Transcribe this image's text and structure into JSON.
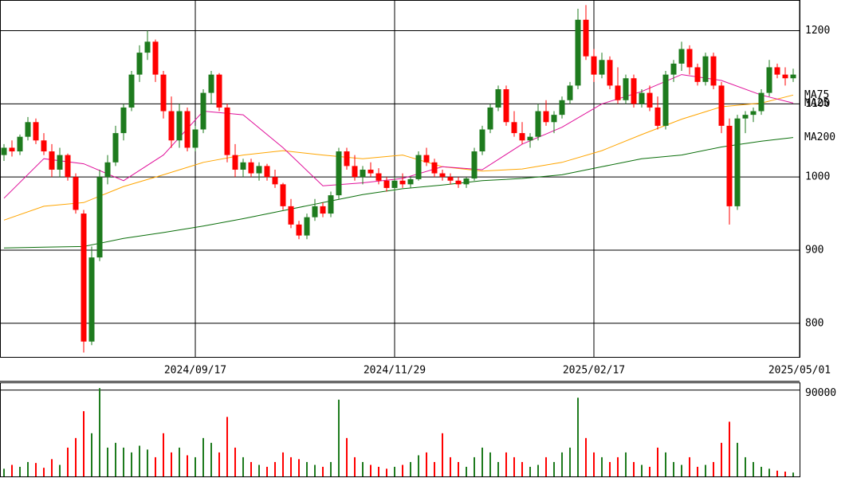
{
  "chart_data": [
    {
      "type": "candlestick",
      "up_color": "#1e7b1e",
      "down_color": "#ff0000",
      "grid": true,
      "x": [
        0,
        1,
        2,
        3,
        4,
        5,
        6,
        7,
        8,
        9,
        10,
        11,
        12,
        13,
        14,
        15,
        16,
        17,
        18,
        19,
        20,
        21,
        22,
        23,
        24,
        25,
        26,
        27,
        28,
        29,
        30,
        31,
        32,
        33,
        34,
        35,
        36,
        37,
        38,
        39,
        40,
        41,
        42,
        43,
        44,
        45,
        46,
        47,
        48,
        49,
        50,
        51,
        52,
        53,
        54,
        55,
        56,
        57,
        58,
        59,
        60,
        61,
        62,
        63,
        64,
        65,
        66,
        67,
        68,
        69,
        70,
        71,
        72,
        73,
        74,
        75,
        76,
        77,
        78,
        79,
        80,
        81,
        82,
        83,
        84,
        85,
        86,
        87,
        88,
        89,
        90,
        91,
        92,
        93,
        94,
        95,
        96,
        97,
        98,
        99
      ],
      "open": [
        1030,
        1040,
        1035,
        1055,
        1075,
        1050,
        1035,
        1010,
        1030,
        1000,
        950,
        775,
        890,
        1000,
        1020,
        1060,
        1095,
        1140,
        1170,
        1185,
        1140,
        1090,
        1050,
        1090,
        1040,
        1065,
        1115,
        1140,
        1095,
        1030,
        1010,
        1020,
        1005,
        1015,
        1000,
        990,
        960,
        935,
        920,
        945,
        960,
        950,
        975,
        1035,
        1015,
        1000,
        1010,
        1005,
        995,
        985,
        995,
        990,
        997,
        1030,
        1020,
        1005,
        1000,
        995,
        990,
        998,
        1035,
        1065,
        1095,
        1120,
        1075,
        1060,
        1050,
        1055,
        1090,
        1075,
        1085,
        1105,
        1125,
        1215,
        1165,
        1140,
        1160,
        1125,
        1105,
        1135,
        1100,
        1115,
        1095,
        1070,
        1140,
        1155,
        1175,
        1150,
        1130,
        1165,
        1125,
        1070,
        960,
        1080,
        1085,
        1090,
        1115,
        1150,
        1140,
        1135
      ],
      "high": [
        1045,
        1050,
        1058,
        1082,
        1080,
        1060,
        1045,
        1040,
        1032,
        1005,
        955,
        905,
        1010,
        1030,
        1070,
        1100,
        1145,
        1180,
        1200,
        1188,
        1145,
        1110,
        1100,
        1095,
        1070,
        1120,
        1145,
        1142,
        1100,
        1045,
        1025,
        1025,
        1020,
        1018,
        1010,
        992,
        970,
        940,
        950,
        970,
        965,
        980,
        1040,
        1040,
        1030,
        1015,
        1020,
        1012,
        1000,
        1000,
        1005,
        1000,
        1035,
        1040,
        1025,
        1010,
        1005,
        1000,
        1000,
        1040,
        1070,
        1100,
        1125,
        1125,
        1090,
        1075,
        1060,
        1100,
        1105,
        1090,
        1110,
        1130,
        1230,
        1235,
        1175,
        1170,
        1165,
        1150,
        1140,
        1140,
        1120,
        1125,
        1110,
        1145,
        1160,
        1185,
        1180,
        1155,
        1170,
        1170,
        1130,
        1080,
        1085,
        1090,
        1095,
        1120,
        1160,
        1155,
        1150,
        1148
      ],
      "low": [
        1022,
        1028,
        1030,
        1050,
        1045,
        1030,
        1000,
        1000,
        995,
        950,
        760,
        770,
        885,
        990,
        1015,
        1050,
        1090,
        1130,
        1160,
        1130,
        1080,
        1040,
        1040,
        1035,
        1035,
        1060,
        1100,
        1090,
        1020,
        1000,
        1000,
        1000,
        995,
        995,
        985,
        955,
        930,
        915,
        915,
        940,
        945,
        945,
        970,
        1010,
        995,
        990,
        1000,
        990,
        980,
        980,
        985,
        985,
        995,
        1015,
        1000,
        995,
        990,
        985,
        985,
        995,
        1030,
        1060,
        1090,
        1070,
        1055,
        1045,
        1040,
        1050,
        1070,
        1060,
        1080,
        1100,
        1120,
        1160,
        1130,
        1135,
        1120,
        1100,
        1100,
        1095,
        1095,
        1090,
        1065,
        1065,
        1130,
        1145,
        1140,
        1125,
        1125,
        1120,
        1060,
        935,
        955,
        1060,
        1075,
        1085,
        1110,
        1135,
        1125,
        1130
      ],
      "close": [
        1040,
        1035,
        1055,
        1075,
        1050,
        1035,
        1010,
        1030,
        1000,
        955,
        775,
        890,
        1000,
        1020,
        1060,
        1095,
        1140,
        1170,
        1185,
        1140,
        1090,
        1050,
        1090,
        1040,
        1065,
        1115,
        1140,
        1095,
        1030,
        1010,
        1020,
        1005,
        1015,
        1000,
        990,
        960,
        935,
        920,
        945,
        960,
        950,
        975,
        1035,
        1015,
        1000,
        1010,
        1005,
        995,
        985,
        995,
        990,
        997,
        1030,
        1020,
        1005,
        1000,
        995,
        990,
        998,
        1035,
        1065,
        1095,
        1120,
        1075,
        1060,
        1050,
        1055,
        1090,
        1075,
        1085,
        1105,
        1125,
        1215,
        1165,
        1140,
        1160,
        1125,
        1105,
        1135,
        1100,
        1115,
        1095,
        1070,
        1140,
        1155,
        1175,
        1150,
        1130,
        1165,
        1125,
        1070,
        960,
        1080,
        1085,
        1090,
        1115,
        1150,
        1140,
        1135,
        1140
      ],
      "series": [
        {
          "name": "MA75",
          "color": "#ffa500",
          "x": [
            0,
            5,
            10,
            15,
            20,
            25,
            30,
            35,
            40,
            45,
            50,
            55,
            60,
            65,
            70,
            75,
            80,
            85,
            90,
            95,
            99
          ],
          "values": [
            941,
            960,
            965,
            987,
            1003,
            1020,
            1030,
            1036,
            1030,
            1025,
            1030,
            1014,
            1008,
            1011,
            1020,
            1036,
            1058,
            1079,
            1096,
            1101,
            1112
          ]
        },
        {
          "name": "MA25",
          "color": "#e0109a",
          "x": [
            0,
            5,
            10,
            15,
            20,
            25,
            30,
            35,
            40,
            45,
            50,
            55,
            60,
            65,
            70,
            75,
            80,
            85,
            90,
            95,
            99
          ],
          "values": [
            971,
            1025,
            1018,
            995,
            1030,
            1090,
            1085,
            1040,
            988,
            992,
            998,
            1014,
            1010,
            1045,
            1068,
            1100,
            1117,
            1140,
            1132,
            1112,
            1101
          ]
        },
        {
          "name": "MA200",
          "color": "#0a6e0a",
          "x": [
            0,
            5,
            10,
            15,
            20,
            25,
            30,
            35,
            40,
            45,
            50,
            55,
            60,
            65,
            70,
            75,
            80,
            85,
            90,
            95,
            99
          ],
          "values": [
            903,
            904,
            905,
            916,
            924,
            933,
            943,
            954,
            965,
            976,
            984,
            989,
            995,
            998,
            1003,
            1014,
            1025,
            1030,
            1041,
            1049,
            1054
          ]
        }
      ],
      "xlim": [
        -0.5,
        99.8
      ],
      "xticks": [
        {
          "value": 24,
          "label": "2024/09/17"
        },
        {
          "value": 49,
          "label": "2024/11/29"
        },
        {
          "value": 74,
          "label": "2025/02/17"
        },
        {
          "value": 99.8,
          "label": "2025/05/01"
        }
      ],
      "ylim": [
        754,
        1242
      ],
      "yticks": [
        800,
        900,
        1000,
        1100,
        1200
      ]
    },
    {
      "type": "bar",
      "x": [
        0,
        1,
        2,
        3,
        4,
        5,
        6,
        7,
        8,
        9,
        10,
        11,
        12,
        13,
        14,
        15,
        16,
        17,
        18,
        19,
        20,
        21,
        22,
        23,
        24,
        25,
        26,
        27,
        28,
        29,
        30,
        31,
        32,
        33,
        34,
        35,
        36,
        37,
        38,
        39,
        40,
        41,
        42,
        43,
        44,
        45,
        46,
        47,
        48,
        49,
        50,
        51,
        52,
        53,
        54,
        55,
        56,
        57,
        58,
        59,
        60,
        61,
        62,
        63,
        64,
        65,
        66,
        67,
        68,
        69,
        70,
        71,
        72,
        73,
        74,
        75,
        76,
        77,
        78,
        79,
        80,
        81,
        82,
        83,
        84,
        85,
        86,
        87,
        88,
        89,
        90,
        91,
        92,
        93,
        94,
        95,
        96,
        97,
        98,
        99
      ],
      "values": [
        8000,
        12000,
        10000,
        15000,
        14000,
        9000,
        18000,
        12000,
        30000,
        40000,
        68000,
        45000,
        92000,
        30000,
        35000,
        30000,
        25000,
        32000,
        28000,
        20000,
        45000,
        25000,
        30000,
        22000,
        20000,
        40000,
        35000,
        25000,
        62000,
        30000,
        20000,
        15000,
        12000,
        10000,
        15000,
        25000,
        20000,
        18000,
        15000,
        12000,
        10000,
        15000,
        80000,
        40000,
        20000,
        15000,
        12000,
        10000,
        8000,
        10000,
        12000,
        15000,
        22000,
        25000,
        15000,
        45000,
        20000,
        15000,
        10000,
        20000,
        30000,
        25000,
        15000,
        25000,
        20000,
        15000,
        10000,
        12000,
        20000,
        15000,
        25000,
        30000,
        82000,
        40000,
        25000,
        20000,
        15000,
        20000,
        25000,
        15000,
        12000,
        10000,
        30000,
        25000,
        15000,
        12000,
        20000,
        10000,
        12000,
        15000,
        35000,
        57000,
        35000,
        20000,
        15000,
        10000,
        8000,
        6000,
        5000,
        4000
      ],
      "xlim": [
        -0.5,
        99.8
      ],
      "ylim": [
        0,
        98000
      ],
      "yticks": [
        90000
      ]
    }
  ]
}
